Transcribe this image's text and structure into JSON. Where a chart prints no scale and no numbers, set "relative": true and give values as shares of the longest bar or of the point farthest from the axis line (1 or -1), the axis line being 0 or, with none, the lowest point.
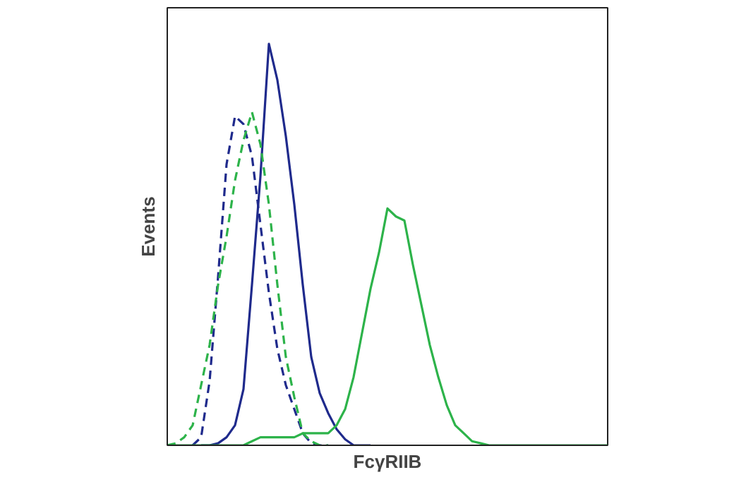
{
  "chart_data": {
    "type": "line",
    "relative": true,
    "xlabel": "FcγRIIB",
    "ylabel": "Events",
    "categories": [
      null,
      null,
      null,
      null,
      null,
      null,
      null,
      null,
      null,
      null,
      null,
      null,
      null,
      null,
      null,
      null,
      null,
      null,
      null,
      null,
      null,
      null,
      null,
      null,
      null,
      null,
      null,
      null,
      null,
      null,
      null,
      null,
      null,
      null,
      null,
      null,
      null,
      null,
      null,
      null,
      null,
      null,
      null,
      null,
      null,
      null,
      null,
      null,
      null,
      null,
      null,
      null,
      null
    ],
    "series": [
      {
        "color": "#1f2a8c",
        "line_style": "solid",
        "values": [
          null,
          null,
          null,
          null,
          0,
          0,
          0.005,
          0.02,
          0.05,
          0.14,
          0.4,
          0.67,
          1.0,
          0.91,
          0.77,
          0.6,
          0.4,
          0.22,
          0.13,
          0.08,
          0.04,
          0.015,
          0,
          0,
          0,
          null,
          null,
          null,
          null,
          null,
          null,
          null,
          null,
          null,
          null,
          null,
          null,
          null,
          null,
          null,
          null,
          null,
          null,
          null,
          null,
          null,
          null,
          null,
          null,
          null,
          null,
          null,
          null
        ]
      },
      {
        "color": "#1f2a8c",
        "line_style": "dashed",
        "values": [
          null,
          null,
          null,
          0,
          0.02,
          0.16,
          0.42,
          0.7,
          0.82,
          0.8,
          0.72,
          0.55,
          0.38,
          0.24,
          0.15,
          0.09,
          0.03,
          0.005,
          0,
          0,
          null,
          null,
          null,
          null,
          null,
          null,
          null,
          null,
          null,
          null,
          null,
          null,
          null,
          null,
          null,
          null,
          null,
          null,
          null,
          null,
          null,
          null,
          null,
          null,
          null,
          null,
          null,
          null,
          null,
          null,
          null,
          null,
          null
        ]
      },
      {
        "color": "#2db34a",
        "line_style": "dashed",
        "values": [
          0,
          0.005,
          0.02,
          0.05,
          0.15,
          0.25,
          0.4,
          0.52,
          0.66,
          0.76,
          0.83,
          0.75,
          0.6,
          0.4,
          0.22,
          0.12,
          0.03,
          0.01,
          0,
          0,
          null,
          null,
          null,
          null,
          null,
          null,
          null,
          null,
          null,
          null,
          null,
          null,
          null,
          null,
          null,
          null,
          null,
          null,
          null,
          null,
          null,
          null,
          null,
          null,
          null,
          null,
          null,
          null,
          null,
          null,
          null,
          null,
          null
        ]
      },
      {
        "color": "#2db34a",
        "line_style": "solid",
        "values": [
          0,
          0,
          0,
          0,
          0,
          0,
          0,
          0,
          0,
          0,
          0.01,
          0.02,
          0.02,
          0.02,
          0.02,
          0.02,
          0.03,
          0.03,
          0.03,
          0.03,
          0.05,
          0.09,
          0.17,
          0.28,
          0.39,
          0.48,
          0.59,
          0.57,
          0.56,
          0.45,
          0.35,
          0.25,
          0.17,
          0.1,
          0.05,
          0.03,
          0.01,
          0.005,
          0,
          0,
          0,
          0,
          0,
          0,
          0,
          0,
          0,
          0,
          0,
          0,
          0,
          0,
          0
        ]
      }
    ]
  }
}
